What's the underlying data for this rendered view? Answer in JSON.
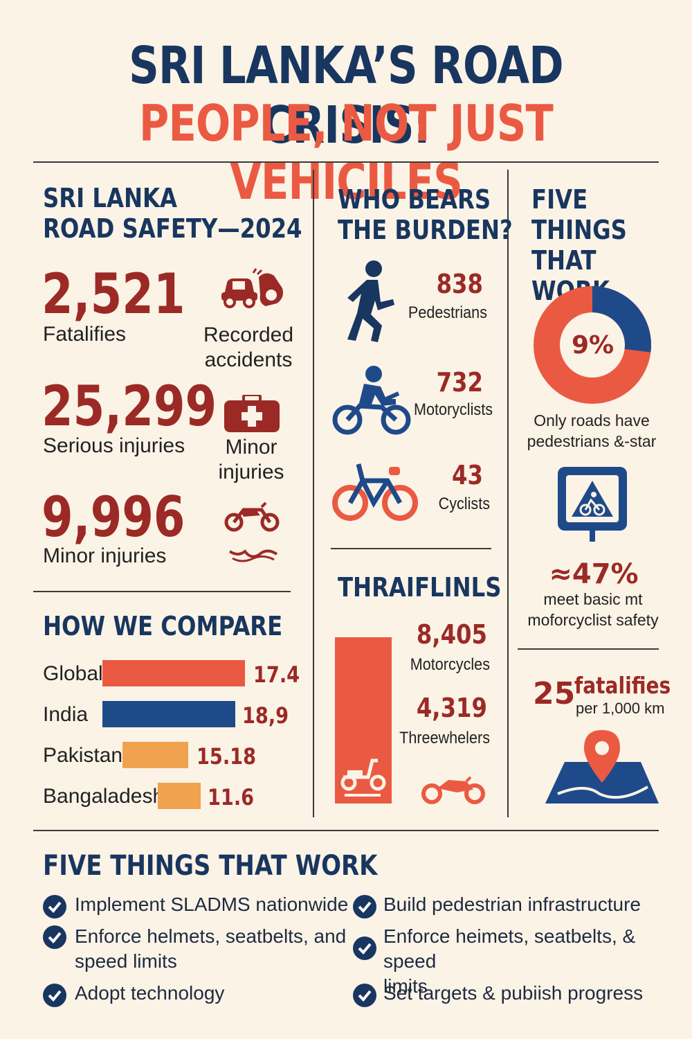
{
  "header": {
    "title_line1": "SRI LANKA’S ROAD CRISIS:",
    "title_line2": "PEOPLE, NOT JUST VEHICILES"
  },
  "safety": {
    "heading_line1": "SRI LANKA",
    "heading_line2": "ROAD SAFETY—2024",
    "stats": [
      {
        "value": "2,521",
        "label": "Fatalifies"
      },
      {
        "value": "25,299",
        "label": "Serious injuries"
      },
      {
        "value": "9,996",
        "label": "Minor injuries"
      }
    ],
    "side_labels": [
      {
        "line1": "Recorded",
        "line2": "accidents"
      },
      {
        "line1": "Minor",
        "line2": "injuries"
      }
    ]
  },
  "compare": {
    "heading": "HOW WE COMPARE",
    "rows": [
      {
        "country": "Global",
        "value": "17.4"
      },
      {
        "country": "India",
        "value": "18,9"
      },
      {
        "country": "Pakistan",
        "value": "15.18"
      },
      {
        "country": "Bangaladesh",
        "value": "11.6"
      }
    ]
  },
  "burden": {
    "heading_line1": "WHO BEARS",
    "heading_line2": "THE BURDEN?",
    "items": [
      {
        "value": "838",
        "label": "Pedestrians",
        "icon": "pedestrian-icon"
      },
      {
        "value": "732",
        "label": "Motoryclists",
        "icon": "motorcyclist-icon"
      },
      {
        "value": "43",
        "label": "Cyclists",
        "icon": "bicycle-icon"
      }
    ]
  },
  "traffic": {
    "heading": "THRAIFLINLS",
    "items": [
      {
        "value": "8,405",
        "label": "Motorcycles"
      },
      {
        "value": "4,319",
        "label": "Threewhelers"
      }
    ]
  },
  "right": {
    "heading_line1": "FIVE",
    "heading_line2": "THINGS",
    "heading_line3": "THAT WORK",
    "donut_label": "9%",
    "donut_percent": 9,
    "donut_caption_line1": "Only roads have",
    "donut_caption_line2": "pedestrians &-star",
    "sign_value": "≈47%",
    "sign_caption_line1": "meet basic mt",
    "sign_caption_line2": "moforcyclist safety",
    "fatal_number": "25",
    "fatal_word": "fatalifies",
    "fatal_unit": "per 1,000 km"
  },
  "actions": {
    "heading": "FIVE THINGS THAT WORK",
    "left": [
      {
        "line1": "Implement SLADMS nationwide",
        "line2": ""
      },
      {
        "line1": "Enforce helmets, seatbelts, and",
        "line2": "speed limits"
      },
      {
        "line1": "Adopt technology",
        "line2": ""
      }
    ],
    "right": [
      {
        "line1": "Build pedestrian infrastructure",
        "line2": ""
      },
      {
        "line1": "Enforce heimets, seatbelts, & speed",
        "line2": "limits"
      },
      {
        "line1": "Set targets & pubiish progress",
        "line2": ""
      }
    ]
  },
  "colors": {
    "navy": "#18365f",
    "coral": "#ea5a42",
    "maroon": "#9b2a26",
    "orange": "#f0a24f",
    "blue": "#1f4a8a",
    "background": "#fbf3e6"
  }
}
